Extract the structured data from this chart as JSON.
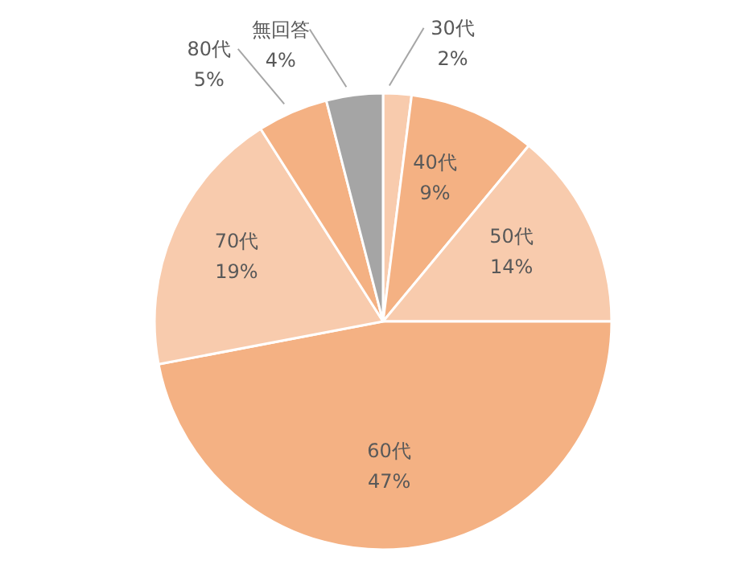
{
  "chart_data": {
    "type": "pie",
    "categories": [
      "30代",
      "40代",
      "50代",
      "60代",
      "70代",
      "80代",
      "無回答"
    ],
    "values": [
      2,
      9,
      14,
      47,
      19,
      5,
      4
    ],
    "colors": [
      "#f8cbad",
      "#f4b183",
      "#f8cbad",
      "#f4b183",
      "#f8cbad",
      "#f4b183",
      "#a5a5a5"
    ],
    "value_labels": [
      "2%",
      "9%",
      "14%",
      "47%",
      "19%",
      "5%",
      "4%"
    ],
    "legend": false
  }
}
